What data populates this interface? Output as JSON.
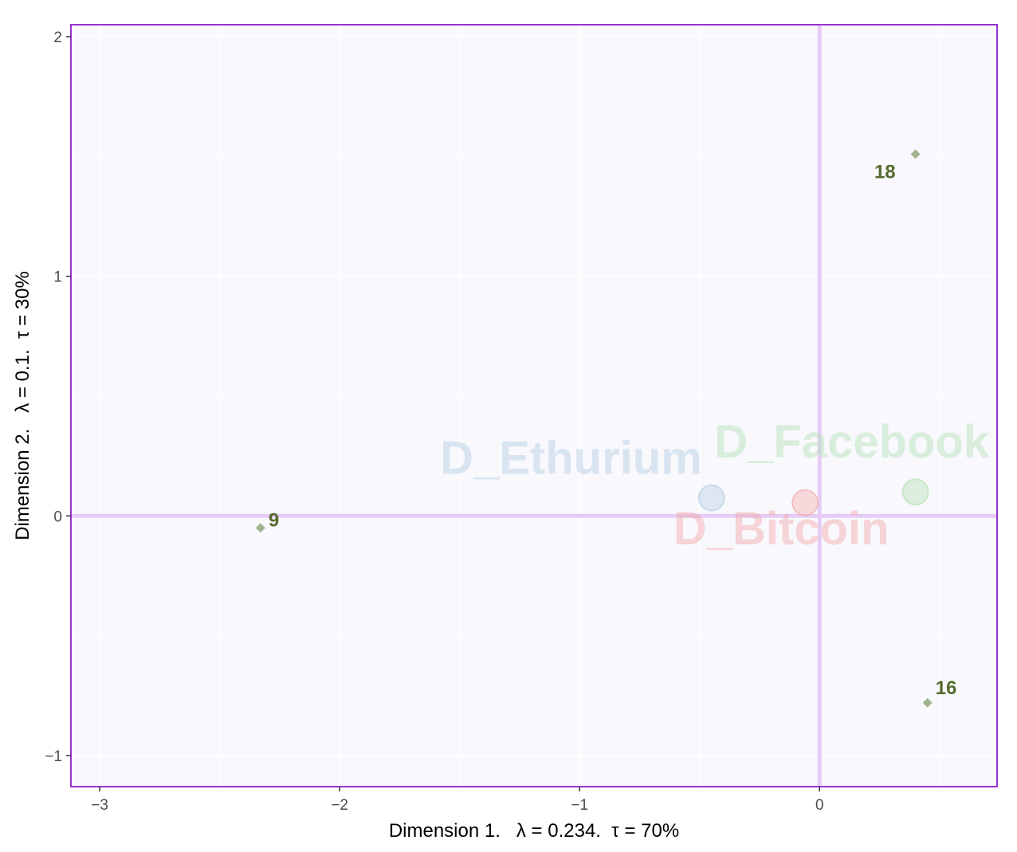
{
  "chart_data": {
    "type": "scatter",
    "title": "",
    "xlabel": "Dimension 1.   λ = 0.234.  τ = 70%",
    "ylabel": "Dimension 2.   λ = 0.1.  τ = 30%",
    "xlim": [
      -3.12,
      0.74
    ],
    "ylim": [
      -1.13,
      2.05
    ],
    "xticks": [
      -3,
      -2,
      -1,
      0
    ],
    "xtick_labels": [
      "−3",
      "−2",
      "−1",
      "0"
    ],
    "yticks": [
      -1,
      0,
      1,
      2
    ],
    "ytick_labels": [
      "−1",
      "0",
      "1",
      "2"
    ],
    "grid": true,
    "reference_lines": {
      "x": 0,
      "y": 0,
      "color": "#e6ccf5"
    },
    "colors": {
      "panel_background": "#f8f8fd",
      "panel_border": "#9932cc",
      "grid": "#ffffff",
      "point_marker": "#a2b48f",
      "point_label": "#556b2f"
    },
    "series": [
      {
        "kind": "points",
        "marker": "diamond",
        "points": [
          {
            "label": "18",
            "x": 0.4,
            "y": 1.51
          },
          {
            "label": "9",
            "x": -2.33,
            "y": -0.05
          },
          {
            "label": "16",
            "x": 0.45,
            "y": -0.78
          }
        ]
      },
      {
        "kind": "categories",
        "marker": "circle",
        "points": [
          {
            "label": "D_Ethurium",
            "x": -0.45,
            "y": 0.075,
            "color": "#b3cde3"
          },
          {
            "label": "D_Bitcoin",
            "x": -0.06,
            "y": 0.055,
            "color": "#f4a7a7"
          },
          {
            "label": "D_Facebook",
            "x": 0.4,
            "y": 0.1,
            "color": "#b2dfb2"
          }
        ]
      }
    ]
  }
}
